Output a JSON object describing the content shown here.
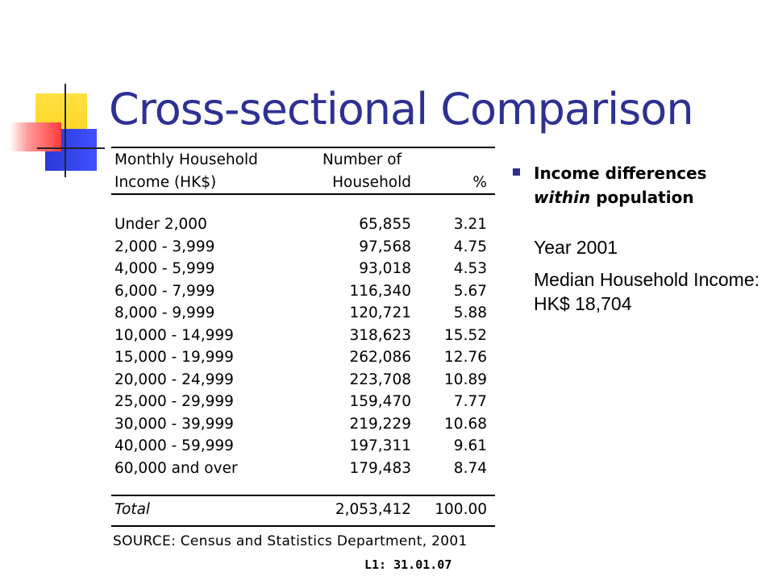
{
  "title": "Cross-sectional Comparison",
  "table": {
    "headers": {
      "income_line1": "Monthly Household",
      "income_line2": "Income (HK$)",
      "number_line1": "Number of",
      "number_line2": "Household",
      "percent": "%"
    },
    "rows": [
      {
        "income": "Under 2,000",
        "number": "65,855",
        "percent": "3.21"
      },
      {
        "income": "2,000 - 3,999",
        "number": "97,568",
        "percent": "4.75"
      },
      {
        "income": "4,000 - 5,999",
        "number": "93,018",
        "percent": "4.53"
      },
      {
        "income": "6,000 - 7,999",
        "number": "116,340",
        "percent": "5.67"
      },
      {
        "income": "8,000 - 9,999",
        "number": "120,721",
        "percent": "5.88"
      },
      {
        "income": "10,000 - 14,999",
        "number": "318,623",
        "percent": "15.52"
      },
      {
        "income": "15,000 - 19,999",
        "number": "262,086",
        "percent": "12.76"
      },
      {
        "income": "20,000 - 24,999",
        "number": "223,708",
        "percent": "10.89"
      },
      {
        "income": "25,000 - 29,999",
        "number": "159,470",
        "percent": "7.77"
      },
      {
        "income": "30,000 - 39,999",
        "number": "219,229",
        "percent": "10.68"
      },
      {
        "income": "40,000 - 59,999",
        "number": "197,311",
        "percent": "9.61"
      },
      {
        "income": "60,000 and over",
        "number": "179,483",
        "percent": "8.74"
      }
    ],
    "total": {
      "income": "Total",
      "number": "2,053,412",
      "percent": "100.00"
    }
  },
  "source": "SOURCE: Census and Statistics Department, 2001",
  "footer": "L1: 31.01.07",
  "bullet": {
    "bold_line1": "Income differences",
    "italic_word": "within",
    "bold_rest": " population"
  },
  "sub_items": [
    "Year 2001",
    "Median Household Income: HK$ 18,704"
  ],
  "colors": {
    "title": "#2e3192",
    "bullet": "#2e3192"
  }
}
